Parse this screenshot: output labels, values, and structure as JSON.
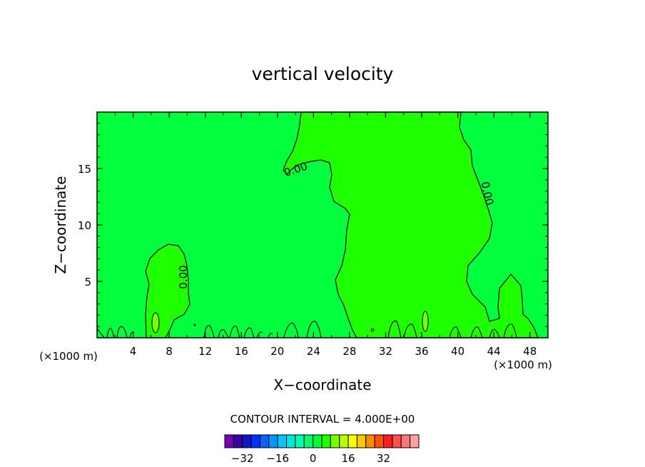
{
  "chart_data": {
    "type": "contour",
    "title": "vertical velocity",
    "xlabel": "X−coordinate",
    "ylabel": "Z−coordinate",
    "x_unit": "(×1000 m)",
    "y_unit": "(×1000 m)",
    "xlim": [
      0,
      50
    ],
    "ylim": [
      0,
      20
    ],
    "x_ticks": [
      "4",
      "8",
      "12",
      "16",
      "20",
      "24",
      "28",
      "32",
      "36",
      "40",
      "44",
      "48"
    ],
    "y_ticks": [
      "5",
      "10",
      "15"
    ],
    "contour_labels": [
      "0.00",
      "0.00",
      "0.00"
    ],
    "contour_interval_text": "CONTOUR INTERVAL =  4.000E+00",
    "colorbar": {
      "tick_labels": [
        "−32",
        "−16",
        "0",
        "16",
        "32"
      ],
      "colors": [
        "#7a00b4",
        "#3c00aa",
        "#1414c8",
        "#0032ff",
        "#0064ff",
        "#0096ff",
        "#00c8ff",
        "#00e6dc",
        "#00ffb4",
        "#00ff64",
        "#00ff32",
        "#1eff00",
        "#78ff00",
        "#b4ff00",
        "#ffff00",
        "#ffc800",
        "#ff8c00",
        "#ff5000",
        "#ff1e1e",
        "#ff5050",
        "#ff7878",
        "#ffa0a0"
      ]
    },
    "grid": false,
    "legend": "bottom-colorbar"
  }
}
